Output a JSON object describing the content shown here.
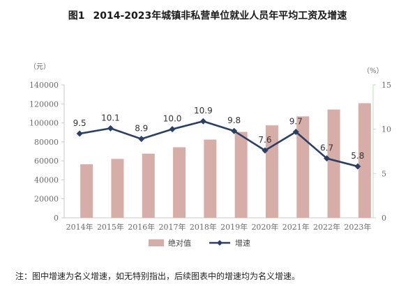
{
  "title": {
    "fig_label": "图1",
    "text": "2014-2023年城镇非私营单位就业人员年平均工资及增速"
  },
  "note": "注：图中增速为名义增速，如无特别指出，后续图表中的增速均为名义增速。",
  "colors": {
    "bar": "#d7aea7",
    "line": "#2a3f66",
    "axis": "#c8c8c8",
    "right_axis": "#bfe0bf",
    "text": "#6b6b6b"
  },
  "chart_data": {
    "type": "bar",
    "categories": [
      "2014年",
      "2015年",
      "2016年",
      "2017年",
      "2018年",
      "2019年",
      "2020年",
      "2021年",
      "2022年",
      "2023年"
    ],
    "series": [
      {
        "name": "绝对值",
        "type": "bar",
        "axis": "left",
        "values": [
          56360,
          62029,
          67569,
          74318,
          82413,
          90501,
          97379,
          106837,
          114029,
          120698
        ]
      },
      {
        "name": "增速",
        "type": "line",
        "axis": "right",
        "values": [
          9.5,
          10.1,
          8.9,
          10.0,
          10.9,
          9.8,
          7.6,
          9.7,
          6.7,
          5.8
        ],
        "labels": [
          "9.5",
          "10.1",
          "8.9",
          "10.0",
          "10.9",
          "9.8",
          "7.6",
          "9.7",
          "6.7",
          "5.8"
        ]
      }
    ],
    "y_left": {
      "unit": "（元）",
      "ylim": [
        0,
        140000
      ],
      "ticks": [
        "0",
        "20000",
        "40000",
        "60000",
        "80000",
        "100000",
        "120000",
        "140000"
      ]
    },
    "y_right": {
      "unit": "（%）",
      "ylim": [
        0,
        15
      ],
      "ticks": [
        "0",
        "5",
        "10",
        "15"
      ]
    },
    "legend": {
      "placement": "bottom"
    }
  }
}
